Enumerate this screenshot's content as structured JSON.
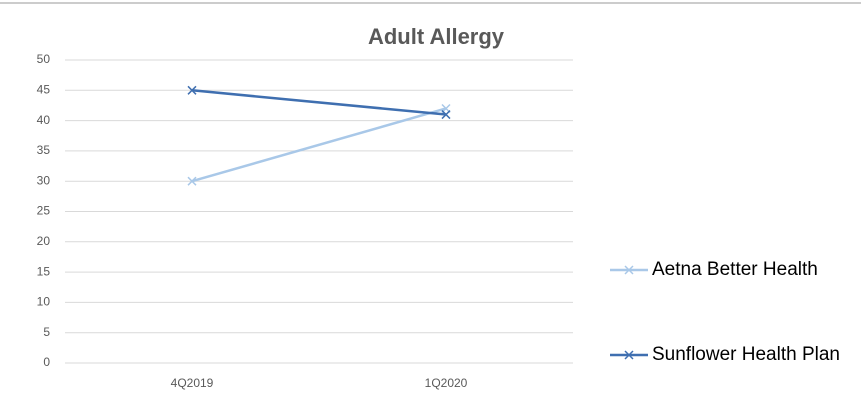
{
  "chart_data": {
    "type": "line",
    "title": "Adult Allergy",
    "categories": [
      "4Q2019",
      "1Q2020"
    ],
    "series": [
      {
        "name": "Aetna Better Health",
        "color": "#a9c8e8",
        "values": [
          30,
          42
        ]
      },
      {
        "name": "Sunflower Health Plan",
        "color": "#3f6fb0",
        "values": [
          45,
          41
        ]
      }
    ],
    "ylim": [
      0,
      50
    ],
    "yticks": [
      0,
      5,
      10,
      15,
      20,
      25,
      30,
      35,
      40,
      45,
      50
    ],
    "grid": true,
    "legend": "right"
  }
}
